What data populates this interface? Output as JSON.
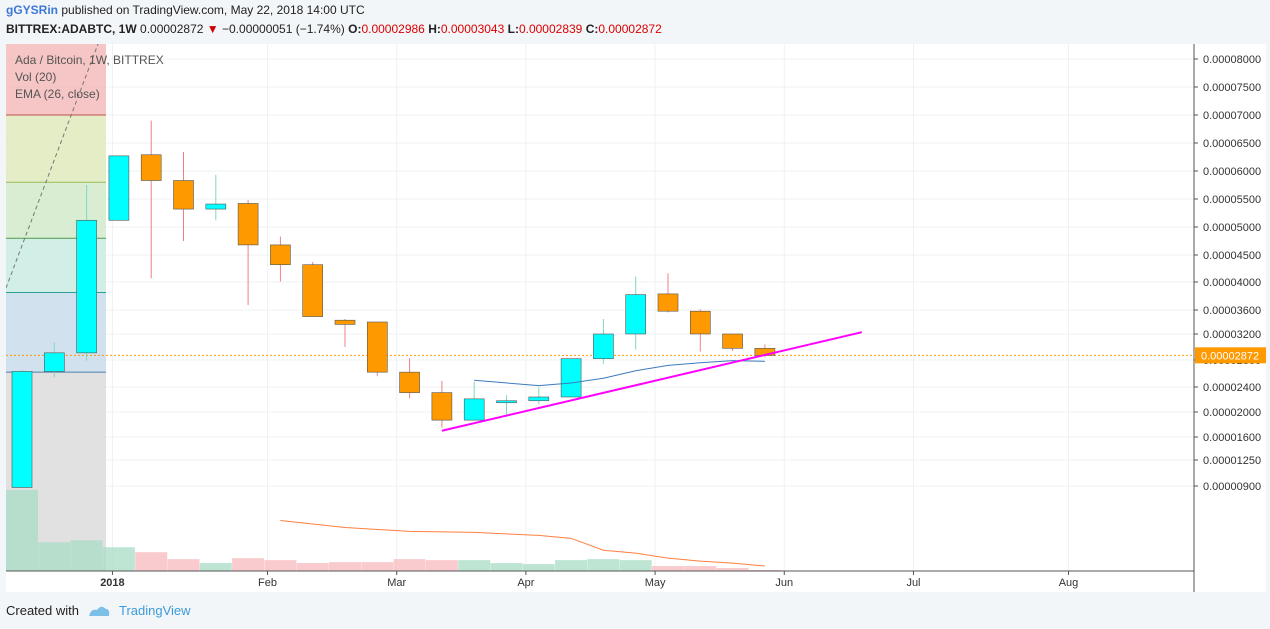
{
  "header": {
    "author": "gGYSRin",
    "published": "published on TradingView.com, May 22, 2018 14:00 UTC"
  },
  "ticker": {
    "symbol": "BITTREX:ADABTC, 1W",
    "last": "0.00002872",
    "change": "−0.00000051 (−1.74%)",
    "o_label": "O:",
    "o": "0.00002986",
    "h_label": "H:",
    "h": "0.00003043",
    "l_label": "L:",
    "l": "0.00002839",
    "c_label": "C:",
    "c": "0.00002872"
  },
  "legend": {
    "title": "Ada / Bitcoin, 1W, BITTREX",
    "vol": "Vol (20)",
    "ema": "EMA (26, close)"
  },
  "footer": {
    "created_with": "Created with",
    "brand": "TradingView"
  },
  "colors": {
    "up": "#00ffff",
    "down": "#ff9900",
    "trendline": "#ff00ff",
    "ema": "#3b7bbf",
    "vol_ma": "#ff7f3f",
    "price_line": "#ff9900"
  },
  "chart_data": {
    "type": "candlestick",
    "price_axis_labels": [
      "0.00008000",
      "0.00007500",
      "0.00007000",
      "0.00006500",
      "0.00006000",
      "0.00005500",
      "0.00005000",
      "0.00004500",
      "0.00004000",
      "0.00003600",
      "0.00003200",
      "0.00002800",
      "0.00002400",
      "0.00002000",
      "0.00001600",
      "0.00001250",
      "0.00000900"
    ],
    "price_axis_values": [
      8e-05,
      7.5e-05,
      7e-05,
      6.5e-05,
      6e-05,
      5.5e-05,
      5e-05,
      4.5e-05,
      4e-05,
      3.6e-05,
      3.2e-05,
      2.8e-05,
      2.4e-05,
      2e-05,
      1.6e-05,
      1.25e-05,
      9e-06
    ],
    "current_price_label": "0.00002872",
    "time_labels": [
      "2018",
      "Feb",
      "Mar",
      "Apr",
      "May",
      "Jun",
      "Jul",
      "Aug"
    ],
    "time_label_weeks": [
      2.8,
      7.6,
      11.6,
      15.6,
      19.6,
      23.6,
      27.6,
      32.4
    ],
    "candles": [
      {
        "w": 0,
        "o": 8.8e-06,
        "h": 2.65e-05,
        "l": 8.8e-06,
        "c": 2.63e-05
      },
      {
        "w": 1,
        "o": 2.63e-05,
        "h": 3.07e-05,
        "l": 2.54e-05,
        "c": 2.91e-05
      },
      {
        "w": 2,
        "o": 2.91e-05,
        "h": 5.75e-05,
        "l": 2.79e-05,
        "c": 5.12e-05
      },
      {
        "w": 3,
        "o": 5.12e-05,
        "h": 6.27e-05,
        "l": 5.12e-05,
        "c": 6.27e-05
      },
      {
        "w": 4,
        "o": 6.29e-05,
        "h": 6.9e-05,
        "l": 4.07e-05,
        "c": 5.83e-05
      },
      {
        "w": 5,
        "o": 5.83e-05,
        "h": 6.34e-05,
        "l": 4.75e-05,
        "c": 5.32e-05
      },
      {
        "w": 6,
        "o": 5.32e-05,
        "h": 5.93e-05,
        "l": 5.12e-05,
        "c": 5.41e-05
      },
      {
        "w": 7,
        "o": 5.42e-05,
        "h": 5.48e-05,
        "l": 3.67e-05,
        "c": 4.68e-05
      },
      {
        "w": 8,
        "o": 4.68e-05,
        "h": 4.83e-05,
        "l": 4.01e-05,
        "c": 4.32e-05
      },
      {
        "w": 9,
        "o": 4.32e-05,
        "h": 4.37e-05,
        "l": 3.49e-05,
        "c": 3.49e-05
      },
      {
        "w": 10,
        "o": 3.43e-05,
        "h": 3.45e-05,
        "l": 3e-05,
        "c": 3.36e-05
      },
      {
        "w": 11,
        "o": 3.4e-05,
        "h": 3.4e-05,
        "l": 2.56e-05,
        "c": 2.62e-05
      },
      {
        "w": 12,
        "o": 2.62e-05,
        "h": 2.83e-05,
        "l": 2.22e-05,
        "c": 2.31e-05
      },
      {
        "w": 13,
        "o": 2.31e-05,
        "h": 2.49e-05,
        "l": 1.75e-05,
        "c": 1.87e-05
      },
      {
        "w": 14,
        "o": 1.87e-05,
        "h": 2.48e-05,
        "l": 1.87e-05,
        "c": 2.21e-05
      },
      {
        "w": 15,
        "o": 2.16e-05,
        "h": 2.27e-05,
        "l": 1.92e-05,
        "c": 2.18e-05
      },
      {
        "w": 16,
        "o": 2.18e-05,
        "h": 2.4e-05,
        "l": 2.12e-05,
        "c": 2.24e-05
      },
      {
        "w": 17,
        "o": 2.24e-05,
        "h": 2.82e-05,
        "l": 2.24e-05,
        "c": 2.82e-05
      },
      {
        "w": 18,
        "o": 2.82e-05,
        "h": 3.45e-05,
        "l": 2.74e-05,
        "c": 3.2e-05
      },
      {
        "w": 19,
        "o": 3.2e-05,
        "h": 4.1e-05,
        "l": 2.96e-05,
        "c": 3.82e-05
      },
      {
        "w": 20,
        "o": 3.83e-05,
        "h": 4.16e-05,
        "l": 3.56e-05,
        "c": 3.58e-05
      },
      {
        "w": 21,
        "o": 3.58e-05,
        "h": 3.61e-05,
        "l": 2.93e-05,
        "c": 3.2e-05
      },
      {
        "w": 22,
        "o": 3.2e-05,
        "h": 3.2e-05,
        "l": 2.94e-05,
        "c": 2.98e-05
      },
      {
        "w": 23,
        "o": 2.98e-05,
        "h": 3.04e-05,
        "l": 2.84e-05,
        "c": 2.87e-05
      }
    ],
    "volume": [
      {
        "w": 0,
        "v": 0.82,
        "up": true
      },
      {
        "w": 1,
        "v": 0.29,
        "up": true
      },
      {
        "w": 2,
        "v": 0.31,
        "up": true
      },
      {
        "w": 3,
        "v": 0.24,
        "up": true
      },
      {
        "w": 4,
        "v": 0.19,
        "up": false
      },
      {
        "w": 5,
        "v": 0.12,
        "up": false
      },
      {
        "w": 6,
        "v": 0.08,
        "up": true
      },
      {
        "w": 7,
        "v": 0.13,
        "up": false
      },
      {
        "w": 8,
        "v": 0.11,
        "up": false
      },
      {
        "w": 9,
        "v": 0.08,
        "up": false
      },
      {
        "w": 10,
        "v": 0.09,
        "up": false
      },
      {
        "w": 11,
        "v": 0.09,
        "up": false
      },
      {
        "w": 12,
        "v": 0.12,
        "up": false
      },
      {
        "w": 13,
        "v": 0.11,
        "up": false
      },
      {
        "w": 14,
        "v": 0.11,
        "up": true
      },
      {
        "w": 15,
        "v": 0.08,
        "up": true
      },
      {
        "w": 16,
        "v": 0.07,
        "up": true
      },
      {
        "w": 17,
        "v": 0.11,
        "up": true
      },
      {
        "w": 18,
        "v": 0.12,
        "up": true
      },
      {
        "w": 19,
        "v": 0.11,
        "up": true
      },
      {
        "w": 20,
        "v": 0.05,
        "up": false
      },
      {
        "w": 21,
        "v": 0.05,
        "up": false
      },
      {
        "w": 22,
        "v": 0.03,
        "up": false
      },
      {
        "w": 23,
        "v": 0.01,
        "up": false
      }
    ],
    "volume_ma": [
      {
        "w": 8,
        "v": 0.51
      },
      {
        "w": 10,
        "v": 0.44
      },
      {
        "w": 12,
        "v": 0.4
      },
      {
        "w": 14,
        "v": 0.39
      },
      {
        "w": 16,
        "v": 0.36
      },
      {
        "w": 17,
        "v": 0.33
      },
      {
        "w": 18,
        "v": 0.21
      },
      {
        "w": 19,
        "v": 0.18
      },
      {
        "w": 20,
        "v": 0.13
      },
      {
        "w": 21,
        "v": 0.1
      },
      {
        "w": 22,
        "v": 0.08
      },
      {
        "w": 23,
        "v": 0.05
      }
    ],
    "ema": [
      {
        "w": 14,
        "v": 2.5e-05
      },
      {
        "w": 16,
        "v": 2.42e-05
      },
      {
        "w": 17,
        "v": 2.46e-05
      },
      {
        "w": 18,
        "v": 2.53e-05
      },
      {
        "w": 19,
        "v": 2.64e-05
      },
      {
        "w": 20,
        "v": 2.72e-05
      },
      {
        "w": 21,
        "v": 2.76e-05
      },
      {
        "w": 22,
        "v": 2.79e-05
      },
      {
        "w": 23,
        "v": 2.78e-05
      }
    ],
    "trendline": [
      {
        "w": 13,
        "v": 1.7e-05
      },
      {
        "w": 26,
        "v": 3.23e-05
      }
    ],
    "fib_levels": [
      7e-05,
      5.8e-05,
      4.8e-05,
      3.85e-05,
      2.62e-05
    ],
    "fib_colors": [
      "#f4b8b8",
      "#dde9b8",
      "#cfe9c8",
      "#c6ebe0",
      "#c6dbea"
    ]
  }
}
